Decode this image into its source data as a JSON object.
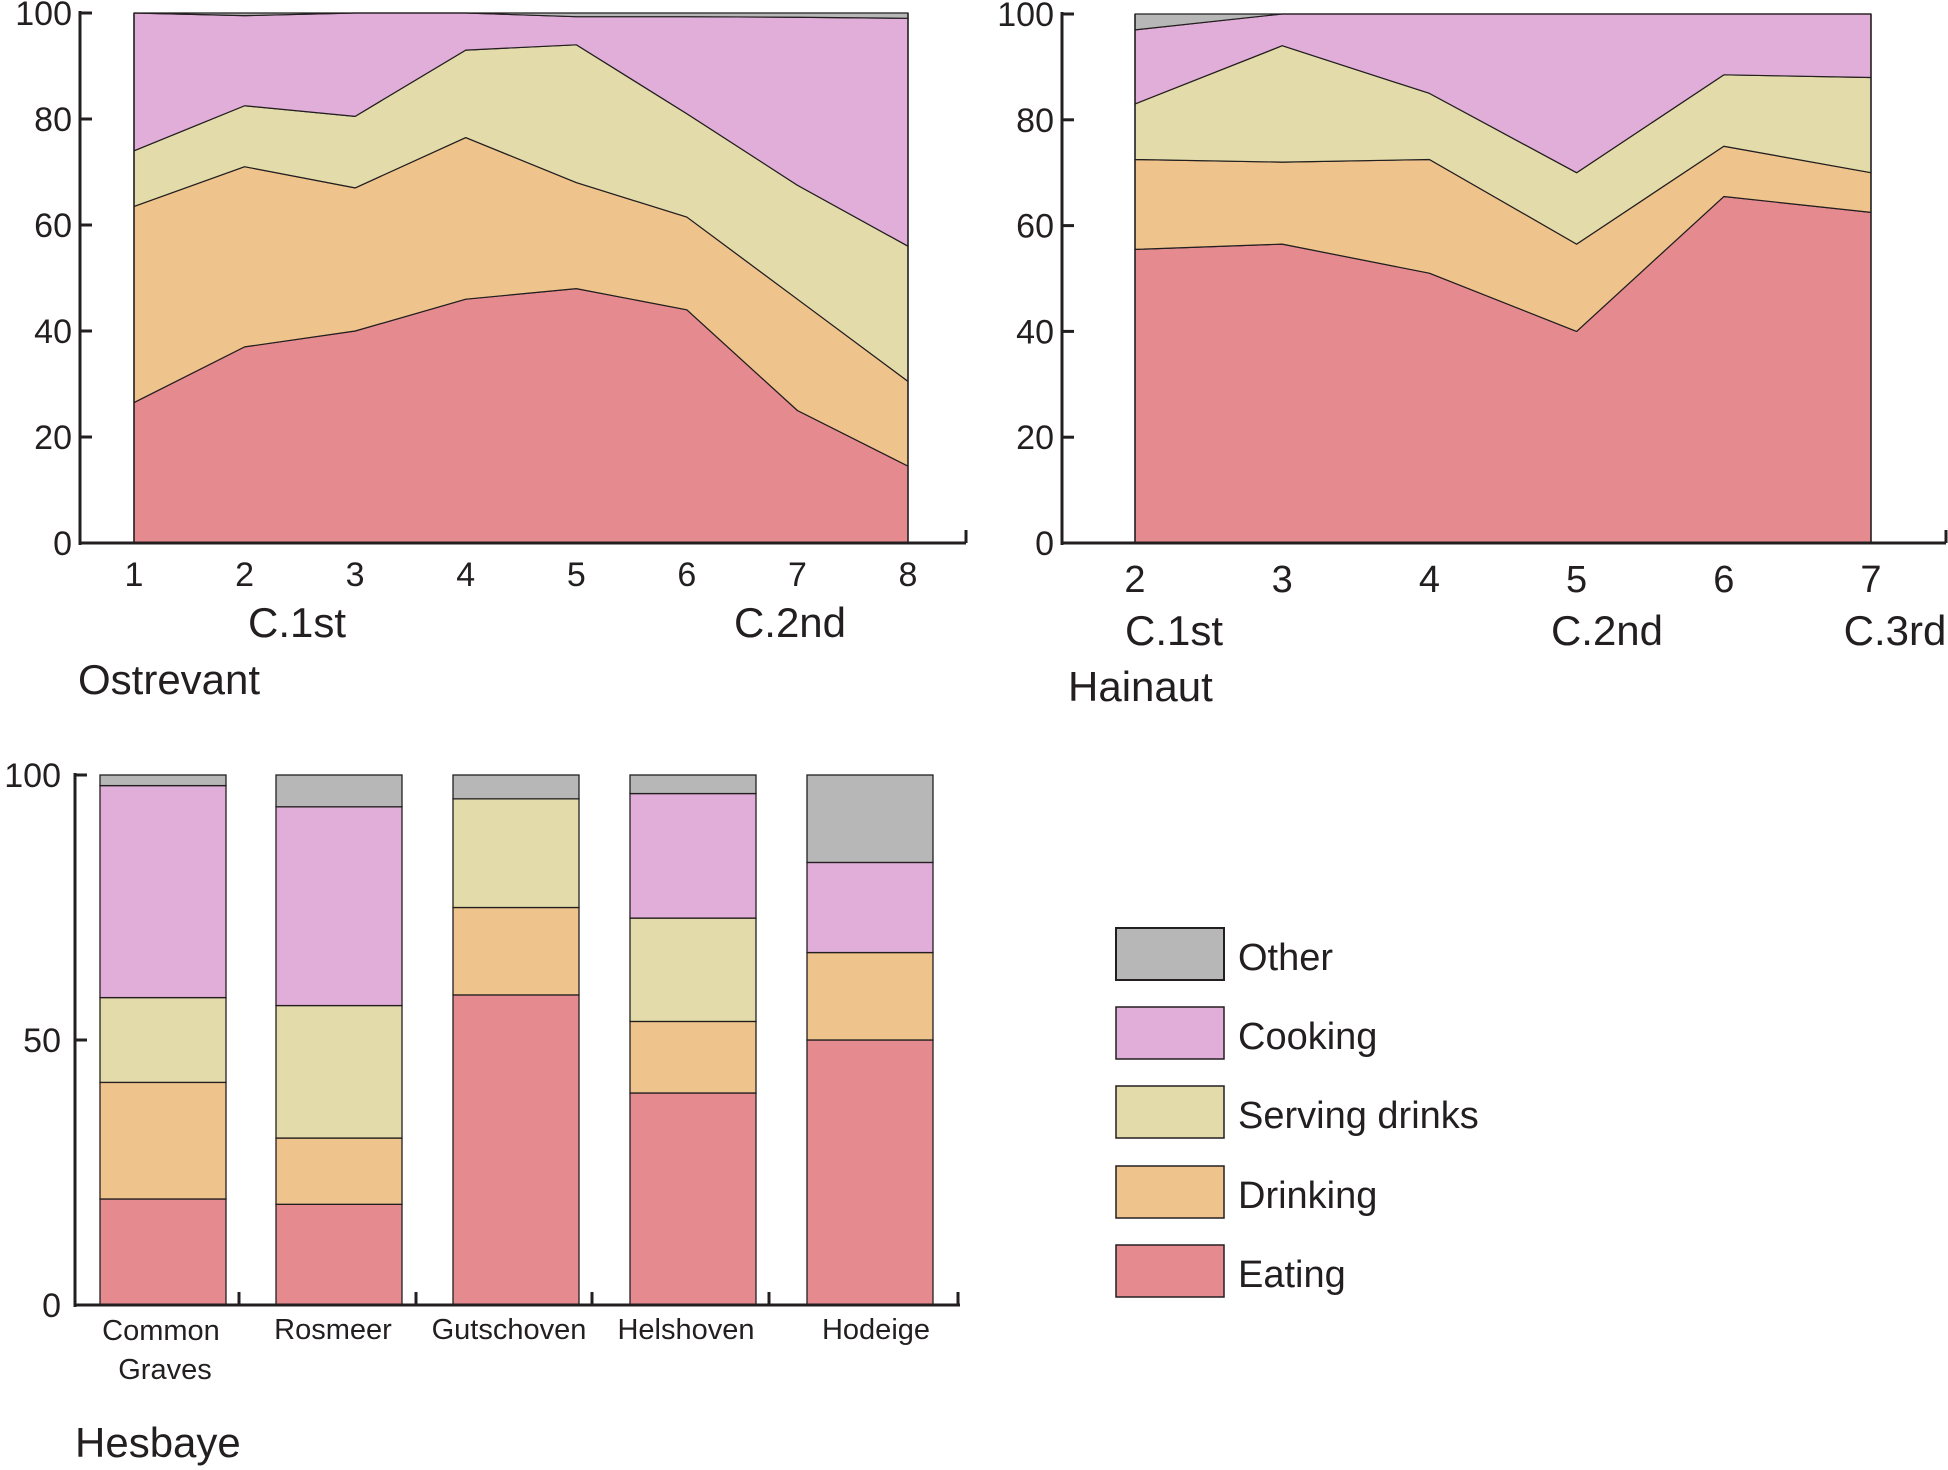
{
  "colors": {
    "Other": "#b7b7b7",
    "Cooking": "#e0aed8",
    "Serving drinks": "#e3dcaa",
    "Drinking": "#eec38c",
    "Eating": "#e58b8f",
    "axis": "#231f20"
  },
  "legend": [
    "Other",
    "Cooking",
    "Serving drinks",
    "Drinking",
    "Eating"
  ],
  "chart_data": [
    {
      "type": "area",
      "stacked": true,
      "region": "Ostrevant",
      "x": [
        "1",
        "2",
        "3",
        "4",
        "5",
        "6",
        "7",
        "8"
      ],
      "xlabel_groups": [
        {
          "label": "C.1st",
          "at": "2"
        },
        {
          "label": "C.2nd",
          "at": "7"
        }
      ],
      "ylim": [
        0,
        100
      ],
      "yticks": [
        "0",
        "20",
        "40",
        "60",
        "80",
        "100"
      ],
      "series": [
        {
          "name": "Eating",
          "values": [
            26.5,
            37,
            40,
            46,
            48,
            44,
            25,
            14.5
          ]
        },
        {
          "name": "Drinking",
          "values": [
            37,
            34,
            27,
            30.5,
            20,
            17.5,
            21,
            16
          ]
        },
        {
          "name": "Serving drinks",
          "values": [
            10.5,
            11.5,
            13.5,
            16.5,
            26,
            19.5,
            21.5,
            25.5
          ]
        },
        {
          "name": "Cooking",
          "values": [
            26,
            17,
            19.5,
            7,
            5.3,
            18.3,
            31.7,
            43
          ]
        },
        {
          "name": "Other",
          "values": [
            0,
            0.5,
            0,
            0,
            0.7,
            0.7,
            0.8,
            1
          ]
        }
      ]
    },
    {
      "type": "area",
      "stacked": true,
      "region": "Hainaut",
      "x": [
        "2",
        "3",
        "4",
        "5",
        "6",
        "7"
      ],
      "xlabel_groups": [
        {
          "label": "C.1st",
          "at": "2"
        },
        {
          "label": "C.2nd",
          "at": "5"
        },
        {
          "label": "C.3rd",
          "at": "7"
        }
      ],
      "ylim": [
        0,
        100
      ],
      "yticks": [
        "0",
        "20",
        "40",
        "60",
        "80",
        "100"
      ],
      "series": [
        {
          "name": "Eating",
          "values": [
            55.5,
            56.5,
            51,
            40,
            65.5,
            62.5
          ]
        },
        {
          "name": "Drinking",
          "values": [
            17,
            15.5,
            21.5,
            16.5,
            9.5,
            7.5
          ]
        },
        {
          "name": "Serving drinks",
          "values": [
            10.5,
            22,
            12.5,
            13.5,
            13.5,
            18
          ]
        },
        {
          "name": "Cooking",
          "values": [
            14,
            6,
            15,
            30,
            11.5,
            12
          ]
        },
        {
          "name": "Other",
          "values": [
            3,
            0,
            0,
            0,
            0,
            0
          ]
        }
      ]
    },
    {
      "type": "bar",
      "stacked": true,
      "region": "Hesbaye",
      "categories": [
        "Common Graves",
        "Rosmeer",
        "Gutschoven",
        "Helshoven",
        "Hodeige"
      ],
      "ylim": [
        0,
        100
      ],
      "yticks": [
        "0",
        "50",
        "100"
      ],
      "series": [
        {
          "name": "Eating",
          "values": [
            20,
            19,
            58.5,
            40,
            50
          ]
        },
        {
          "name": "Drinking",
          "values": [
            22,
            12.5,
            16.5,
            13.5,
            16.5
          ]
        },
        {
          "name": "Serving drinks",
          "values": [
            16,
            25,
            20.5,
            19.5,
            0
          ]
        },
        {
          "name": "Cooking",
          "values": [
            40,
            37.5,
            0,
            23.5,
            17
          ]
        },
        {
          "name": "Other",
          "values": [
            2,
            6,
            4.5,
            3.5,
            16.5
          ]
        }
      ]
    }
  ]
}
